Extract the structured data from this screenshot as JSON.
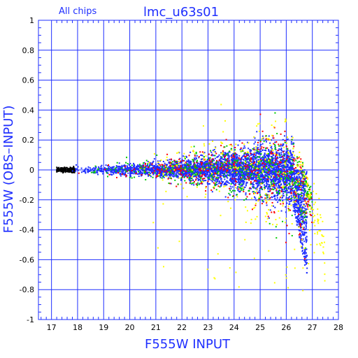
{
  "chart_data": {
    "type": "scatter",
    "title": "lmc_u63s01",
    "subtitle": "All chips",
    "xlabel": "F555W INPUT",
    "ylabel": "F555W (OBS–INPUT)",
    "xlim": [
      16.5,
      28
    ],
    "ylim": [
      -1,
      1
    ],
    "x_ticks": [
      "17",
      "18",
      "19",
      "20",
      "21",
      "22",
      "23",
      "24",
      "25",
      "26",
      "27",
      "28"
    ],
    "y_ticks": [
      "1",
      "0.8",
      "0.6",
      "0.4",
      "0.2",
      "0",
      "-0.2",
      "-0.4",
      "-0.6",
      "-0.8",
      "-1"
    ],
    "grid": true,
    "series": [
      {
        "color": "#000000",
        "x_range": [
          17.2,
          17.9
        ],
        "spread_model": "narrow"
      },
      {
        "color": "#1f2fff",
        "x_range": [
          17.6,
          26.8
        ],
        "spread_model": "fan"
      },
      {
        "color": "#ff0000",
        "x_range": [
          18.0,
          27.0
        ],
        "spread_model": "fan-wide"
      },
      {
        "color": "#00cc00",
        "x_range": [
          18.0,
          27.0
        ],
        "spread_model": "fan-wide"
      },
      {
        "color": "#ffff00",
        "x_range": [
          20.0,
          27.5
        ],
        "spread_model": "fan-widest"
      }
    ],
    "colors": {
      "axis": "#1f2fff",
      "grid": "#1f2fff",
      "text": "#000000"
    }
  }
}
